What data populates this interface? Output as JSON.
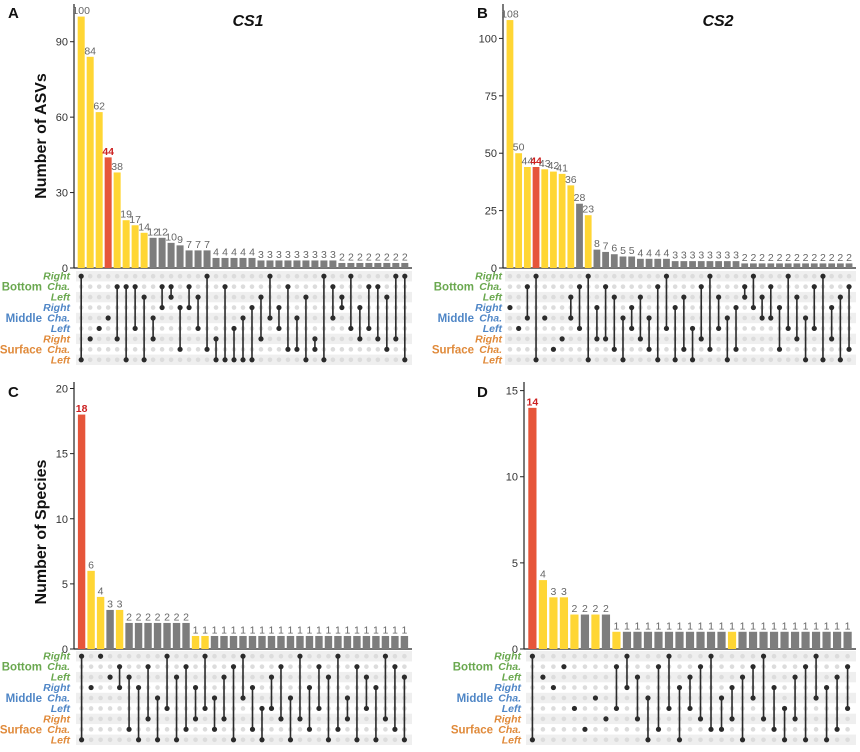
{
  "colors": {
    "yellow": "#ffd634",
    "red": "#e6553a",
    "gray": "#7d7d7d",
    "dot_on": "#2b2b2b",
    "dot_off": "#dcdcdc",
    "stripe": "#efefef",
    "bottom": "#6aa84f",
    "middle": "#4f86c6",
    "surface": "#e08a3a"
  },
  "matrix_labels": {
    "sets": [
      "Right",
      "Cha.",
      "Left",
      "Right",
      "Cha.",
      "Left",
      "Right",
      "Cha.",
      "Left"
    ],
    "set_groups": [
      "bottom",
      "bottom",
      "bottom",
      "middle",
      "middle",
      "middle",
      "surface",
      "surface",
      "surface"
    ],
    "groups": [
      "Bottom",
      "Middle",
      "Surface"
    ]
  },
  "chart_data": [
    {
      "type": "bar",
      "panel": "A",
      "title": "CS1",
      "ylabel": "Number of ASVs",
      "ylim": [
        0,
        105
      ],
      "yticks": [
        0,
        30,
        60,
        90
      ],
      "values": [
        100,
        84,
        62,
        44,
        38,
        19,
        17,
        14,
        12,
        12,
        10,
        9,
        7,
        7,
        7,
        4,
        4,
        4,
        4,
        4,
        3,
        3,
        3,
        3,
        3,
        3,
        3,
        3,
        3,
        2,
        2,
        2,
        2,
        2,
        2,
        2,
        2
      ],
      "colors": [
        "yellow",
        "yellow",
        "yellow",
        "red",
        "yellow",
        "yellow",
        "yellow",
        "yellow",
        "gray",
        "gray",
        "gray",
        "gray",
        "gray",
        "gray",
        "gray",
        "gray",
        "gray",
        "gray",
        "gray",
        "gray",
        "gray",
        "gray",
        "gray",
        "gray",
        "gray",
        "gray",
        "gray",
        "gray",
        "gray",
        "gray",
        "gray",
        "gray",
        "gray",
        "gray",
        "gray",
        "gray",
        "gray"
      ]
    },
    {
      "type": "bar",
      "panel": "B",
      "title": "CS2",
      "ylabel": "",
      "ylim": [
        0,
        115
      ],
      "yticks": [
        0,
        25,
        50,
        75,
        100
      ],
      "values": [
        108,
        50,
        44,
        44,
        43,
        42,
        41,
        36,
        28,
        23,
        8,
        7,
        6,
        5,
        5,
        4,
        4,
        4,
        4,
        3,
        3,
        3,
        3,
        3,
        3,
        3,
        3,
        2,
        2,
        2,
        2,
        2,
        2,
        2,
        2,
        2,
        2,
        2,
        2,
        2
      ],
      "colors": [
        "yellow",
        "yellow",
        "yellow",
        "red",
        "yellow",
        "yellow",
        "yellow",
        "yellow",
        "gray",
        "yellow",
        "gray",
        "gray",
        "gray",
        "gray",
        "gray",
        "gray",
        "gray",
        "gray",
        "gray",
        "gray",
        "gray",
        "gray",
        "gray",
        "gray",
        "gray",
        "gray",
        "gray",
        "gray",
        "gray",
        "gray",
        "gray",
        "gray",
        "gray",
        "gray",
        "gray",
        "gray",
        "gray",
        "gray",
        "gray",
        "gray"
      ]
    },
    {
      "type": "bar",
      "panel": "C",
      "title": "",
      "ylabel": "Number of Species",
      "ylim": [
        0,
        20.5
      ],
      "yticks": [
        0,
        5,
        10,
        15,
        20
      ],
      "values": [
        18,
        6,
        4,
        3,
        3,
        2,
        2,
        2,
        2,
        2,
        2,
        2,
        1,
        1,
        1,
        1,
        1,
        1,
        1,
        1,
        1,
        1,
        1,
        1,
        1,
        1,
        1,
        1,
        1,
        1,
        1,
        1,
        1,
        1,
        1
      ],
      "colors": [
        "red",
        "yellow",
        "yellow",
        "gray",
        "yellow",
        "gray",
        "gray",
        "gray",
        "gray",
        "gray",
        "gray",
        "gray",
        "yellow",
        "yellow",
        "gray",
        "gray",
        "gray",
        "gray",
        "gray",
        "gray",
        "gray",
        "gray",
        "gray",
        "gray",
        "gray",
        "gray",
        "gray",
        "gray",
        "gray",
        "gray",
        "gray",
        "gray",
        "gray",
        "gray",
        "gray"
      ]
    },
    {
      "type": "bar",
      "panel": "D",
      "title": "",
      "ylabel": "",
      "ylim": [
        0,
        15.5
      ],
      "yticks": [
        0,
        5,
        10,
        15
      ],
      "values": [
        14,
        4,
        3,
        3,
        2,
        2,
        2,
        2,
        1,
        1,
        1,
        1,
        1,
        1,
        1,
        1,
        1,
        1,
        1,
        1,
        1,
        1,
        1,
        1,
        1,
        1,
        1,
        1,
        1,
        1,
        1
      ],
      "colors": [
        "red",
        "yellow",
        "yellow",
        "yellow",
        "yellow",
        "gray",
        "yellow",
        "gray",
        "yellow",
        "gray",
        "gray",
        "gray",
        "gray",
        "gray",
        "gray",
        "gray",
        "gray",
        "gray",
        "gray",
        "yellow",
        "gray",
        "gray",
        "gray",
        "gray",
        "gray",
        "gray",
        "gray",
        "gray",
        "gray",
        "gray",
        "gray"
      ]
    }
  ]
}
